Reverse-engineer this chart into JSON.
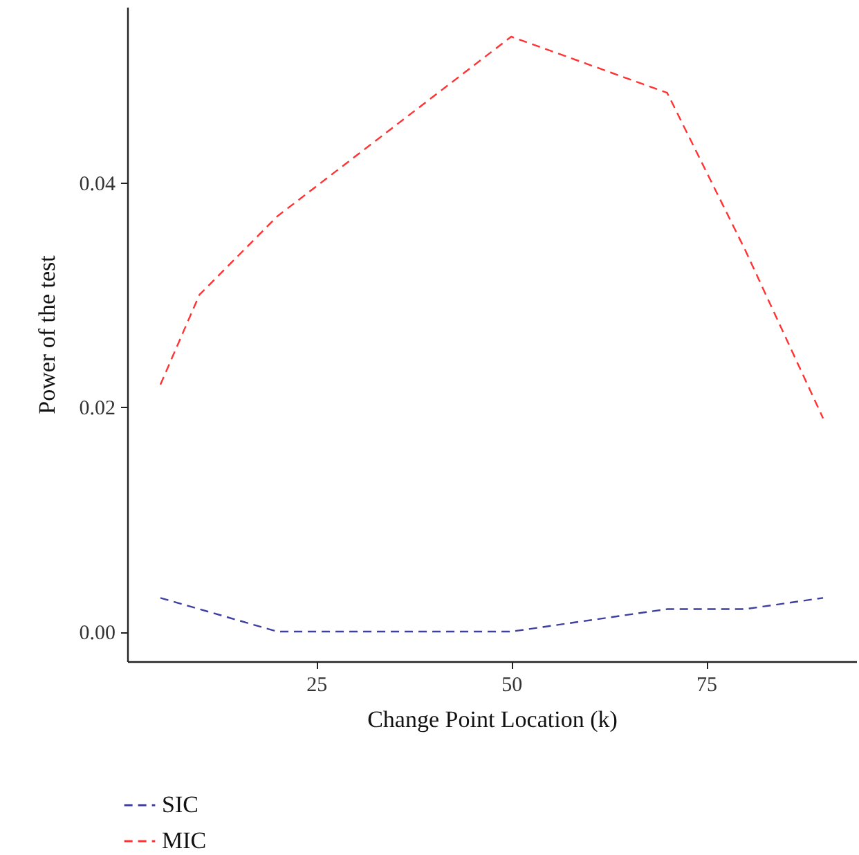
{
  "chart_data": {
    "type": "line",
    "xlabel": "Change Point Location (k)",
    "ylabel": "Power of the test",
    "x": [
      5,
      10,
      20,
      50,
      70,
      80,
      90
    ],
    "series": [
      {
        "name": "SIC",
        "color": "#3f3f9f",
        "values": [
          0.003,
          0.002,
          0,
          0,
          0.002,
          0.002,
          0.003
        ]
      },
      {
        "name": "MIC",
        "color": "#ff3333",
        "values": [
          0.022,
          0.03,
          0.037,
          0.053,
          0.048,
          0.034,
          0.019
        ]
      }
    ],
    "xlim": [
      0.75,
      94.25
    ],
    "xticks": [
      25,
      50,
      75
    ],
    "ylim": [
      -0.00265,
      0.05565
    ],
    "yticks": [
      {
        "value": 0,
        "label": "0.00"
      },
      {
        "value": 0.02,
        "label": "0.02"
      },
      {
        "value": 0.04,
        "label": "0.04"
      }
    ],
    "grid": false,
    "legend": "bottom left",
    "line_style": "dashed",
    "marker": "none"
  }
}
